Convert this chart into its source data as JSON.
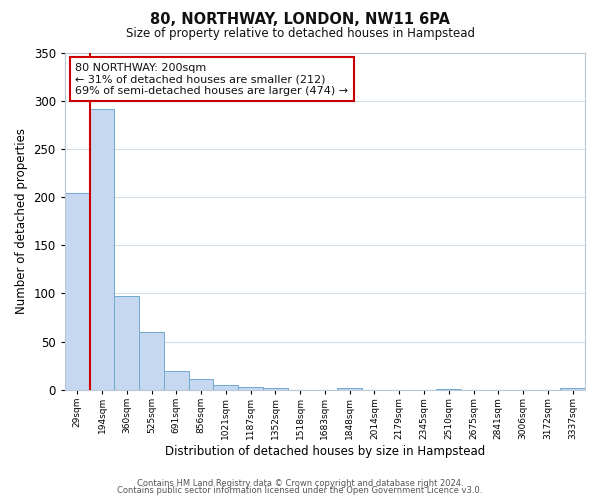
{
  "title": "80, NORTHWAY, LONDON, NW11 6PA",
  "subtitle": "Size of property relative to detached houses in Hampstead",
  "xlabel": "Distribution of detached houses by size in Hampstead",
  "ylabel": "Number of detached properties",
  "bin_labels": [
    "29sqm",
    "194sqm",
    "360sqm",
    "525sqm",
    "691sqm",
    "856sqm",
    "1021sqm",
    "1187sqm",
    "1352sqm",
    "1518sqm",
    "1683sqm",
    "1848sqm",
    "2014sqm",
    "2179sqm",
    "2345sqm",
    "2510sqm",
    "2675sqm",
    "2841sqm",
    "3006sqm",
    "3172sqm",
    "3337sqm"
  ],
  "bar_values": [
    204,
    291,
    97,
    60,
    20,
    11,
    5,
    3,
    2,
    0,
    0,
    2,
    0,
    0,
    0,
    1,
    0,
    0,
    0,
    0,
    2
  ],
  "bar_color": "#c5d8f0",
  "bar_edge_color": "#6fa8d0",
  "vline_x_bin": 1,
  "vline_color": "#cc0000",
  "ylim": [
    0,
    350
  ],
  "yticks": [
    0,
    50,
    100,
    150,
    200,
    250,
    300,
    350
  ],
  "annotation_text": "80 NORTHWAY: 200sqm\n← 31% of detached houses are smaller (212)\n69% of semi-detached houses are larger (474) →",
  "annotation_box_edgecolor": "#cc0000",
  "annotation_box_facecolor": "#ffffff",
  "footnote1": "Contains HM Land Registry data © Crown copyright and database right 2024.",
  "footnote2": "Contains public sector information licensed under the Open Government Licence v3.0.",
  "background_color": "#ffffff",
  "grid_color": "#d0dce8"
}
